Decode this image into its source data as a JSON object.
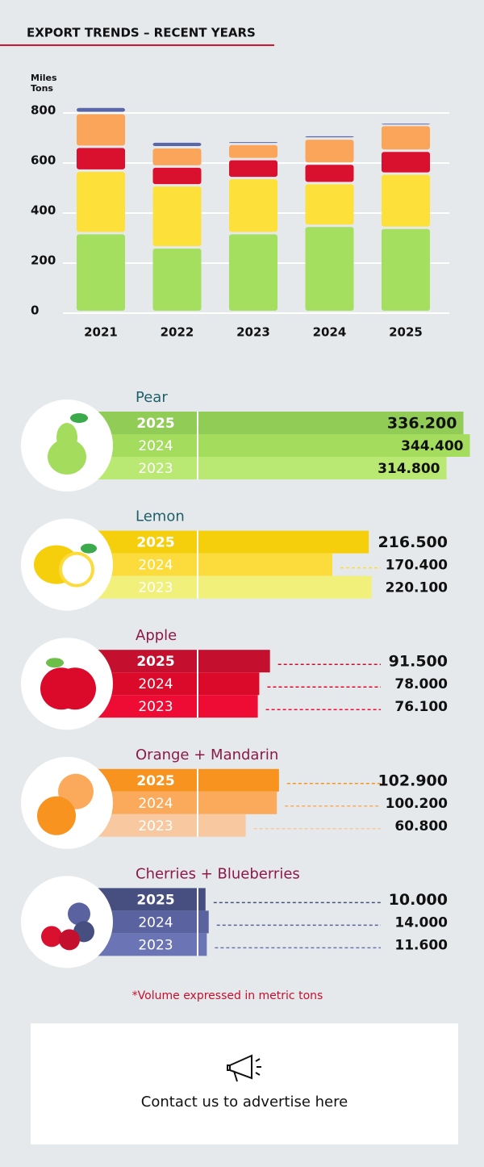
{
  "header": {
    "title": "EXPORT TRENDS – RECENT YEARS"
  },
  "chart_data": [
    {
      "type": "stacked-bar",
      "ylabel": [
        "Miles",
        "Tons"
      ],
      "categories": [
        "2021",
        "2022",
        "2023",
        "2024",
        "2025"
      ],
      "ylim": [
        0,
        800
      ],
      "yticks": [
        0,
        200,
        400,
        600,
        800
      ],
      "grid": true,
      "series": [
        {
          "color": "#a5df5f",
          "values": [
            315,
            258,
            314.8,
            344.4,
            336.2
          ]
        },
        {
          "color": "#fde03a",
          "values": [
            250,
            248,
            220.1,
            170.4,
            216.5
          ]
        },
        {
          "color": "#d9102e",
          "values": [
            95,
            75,
            76.1,
            78,
            91.5
          ]
        },
        {
          "color": "#fba55a",
          "values": [
            135,
            77,
            60.8,
            100.2,
            102.9
          ]
        },
        {
          "color": "#5a67a8",
          "values": [
            25,
            23,
            11.6,
            14,
            10
          ]
        }
      ]
    },
    {
      "type": "hbar",
      "title": "Pear",
      "title_color": "#1f5f6a",
      "xlim": [
        0,
        350
      ],
      "categories": [
        "2025",
        "2024",
        "2023"
      ],
      "values": [
        336.2,
        344.4,
        314.8
      ],
      "value_labels": [
        "336.200",
        "344.400",
        "314.800"
      ],
      "colors": [
        "#91cc57",
        "#a4dc5d",
        "#b9e873"
      ]
    },
    {
      "type": "hbar",
      "title": "Lemon",
      "title_color": "#1f5f6a",
      "xlim": [
        0,
        350
      ],
      "categories": [
        "2025",
        "2024",
        "2023"
      ],
      "values": [
        216.5,
        170.4,
        220.1
      ],
      "value_labels": [
        "216.500",
        "170.400",
        "220.100"
      ],
      "colors": [
        "#f5cf0c",
        "#fbdc3c",
        "#f1f07a"
      ]
    },
    {
      "type": "hbar",
      "title": "Apple",
      "title_color": "#8b1a4a",
      "xlim": [
        0,
        350
      ],
      "categories": [
        "2025",
        "2024",
        "2023"
      ],
      "values": [
        91.5,
        78,
        76.1
      ],
      "value_labels": [
        "91.500",
        "78.000",
        "76.100"
      ],
      "colors": [
        "#c4102e",
        "#dc0a2a",
        "#ee0c35"
      ]
    },
    {
      "type": "hbar",
      "title": "Orange + Mandarin",
      "title_color": "#8b1a4a",
      "xlim": [
        0,
        350
      ],
      "categories": [
        "2025",
        "2024",
        "2023"
      ],
      "values": [
        102.9,
        100.2,
        60.8
      ],
      "value_labels": [
        "102.900",
        "100.200",
        "60.800"
      ],
      "colors": [
        "#f7931e",
        "#fbaa5c",
        "#f8c9a0"
      ]
    },
    {
      "type": "hbar",
      "title": "Cherries + Blueberries",
      "title_color": "#8b1a4a",
      "xlim": [
        0,
        350
      ],
      "categories": [
        "2025",
        "2024",
        "2023"
      ],
      "values": [
        10,
        14,
        11.6
      ],
      "value_labels": [
        "10.000",
        "14.000",
        "11.600"
      ],
      "colors": [
        "#474f80",
        "#5a63a0",
        "#6b75b5"
      ]
    }
  ],
  "footnote": "*Volume expressed in metric tons",
  "ad": {
    "text": "Contact us to advertise here"
  }
}
